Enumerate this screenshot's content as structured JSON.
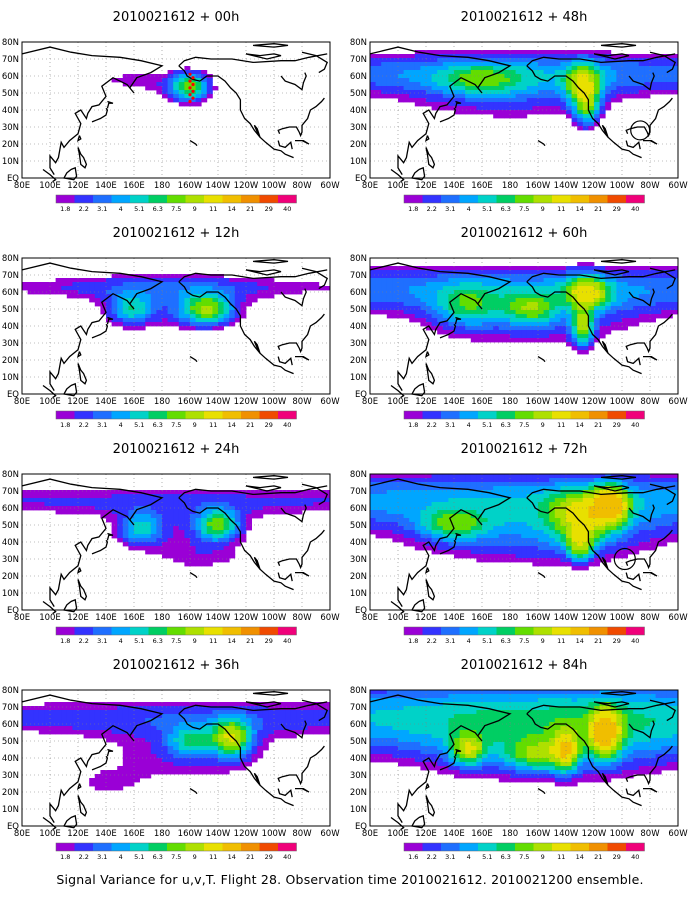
{
  "figure": {
    "caption": "Signal Variance for u,v,T. Flight 28. Observation time 2010021612. 2010021200 ensemble.",
    "palette": [
      "#9a00d6",
      "#3333ff",
      "#1f6fff",
      "#00a6ff",
      "#00d2c8",
      "#00ce63",
      "#63dd00",
      "#aee000",
      "#e8e000",
      "#f0be00",
      "#f09000",
      "#f04a00",
      "#f0007a"
    ],
    "continent_color": "#000000",
    "grid_color": "#808080"
  },
  "chart_data": [
    {
      "type": "heatmap",
      "title": "2010021612 + 00h",
      "x_tick_labels": [
        "80E",
        "100E",
        "120E",
        "140E",
        "160E",
        "180",
        "160W",
        "140W",
        "120W",
        "100W",
        "80W",
        "60W"
      ],
      "y_tick_labels": [
        "EQ",
        "10N",
        "20N",
        "30N",
        "40N",
        "50N",
        "60N",
        "70N",
        "80N"
      ],
      "colorbar_labels": [
        "1.8",
        "2.2",
        "3.1",
        "4",
        "5.1",
        "6.3",
        "7.5",
        "9",
        "11",
        "14",
        "21",
        "29",
        "40"
      ],
      "blobs": [
        [
          150,
          58,
          30,
          8,
          1.6
        ],
        [
          -160,
          53,
          9,
          6,
          6.5
        ],
        [
          -165,
          55,
          18,
          6,
          1.5
        ]
      ],
      "band": null,
      "observations": {
        "lon": -160,
        "lat_from": 45,
        "lat_to": 62
      },
      "circle": null
    },
    {
      "type": "heatmap",
      "title": "2010021612 + 12h",
      "x_tick_labels": [
        "80E",
        "100E",
        "120E",
        "140E",
        "160E",
        "180",
        "160W",
        "140W",
        "120W",
        "100W",
        "80W",
        "60W"
      ],
      "y_tick_labels": [
        "EQ",
        "10N",
        "20N",
        "30N",
        "40N",
        "50N",
        "60N",
        "70N",
        "80N"
      ],
      "colorbar_labels": [
        "1.8",
        "2.2",
        "3.1",
        "4",
        "5.1",
        "6.3",
        "7.5",
        "9",
        "11",
        "14",
        "21",
        "29",
        "40"
      ],
      "blobs": [
        [
          158,
          50,
          10,
          6,
          4.5
        ],
        [
          -148,
          50,
          12,
          6,
          7.5
        ],
        [
          -170,
          48,
          42,
          10,
          1.8
        ],
        [
          180,
          62,
          55,
          10,
          1.4
        ]
      ],
      "band": [
        63,
        5,
        1.5
      ],
      "observations": null,
      "circle": null
    },
    {
      "type": "heatmap",
      "title": "2010021612 + 24h",
      "x_tick_labels": [
        "80E",
        "100E",
        "120E",
        "140E",
        "160E",
        "180",
        "160W",
        "140W",
        "120W",
        "100W",
        "80W",
        "60W"
      ],
      "y_tick_labels": [
        "EQ",
        "10N",
        "20N",
        "30N",
        "40N",
        "50N",
        "60N",
        "70N",
        "80N"
      ],
      "colorbar_labels": [
        "1.8",
        "2.2",
        "3.1",
        "4",
        "5.1",
        "6.3",
        "7.5",
        "9",
        "11",
        "14",
        "21",
        "29",
        "40"
      ],
      "blobs": [
        [
          165,
          48,
          10,
          6,
          4.5
        ],
        [
          -140,
          50,
          10,
          6,
          7
        ],
        [
          -168,
          45,
          45,
          12,
          1.8
        ],
        [
          -150,
          30,
          25,
          6,
          1.3
        ]
      ],
      "band": [
        64,
        7,
        2.2
      ],
      "observations": null,
      "circle": null
    },
    {
      "type": "heatmap",
      "title": "2010021612 + 36h",
      "x_tick_labels": [
        "80E",
        "100E",
        "120E",
        "140E",
        "160E",
        "180",
        "160W",
        "140W",
        "120W",
        "100W",
        "80W",
        "60W"
      ],
      "y_tick_labels": [
        "EQ",
        "10N",
        "20N",
        "30N",
        "40N",
        "50N",
        "60N",
        "70N",
        "80N"
      ],
      "colorbar_labels": [
        "1.8",
        "2.2",
        "3.1",
        "4",
        "5.1",
        "6.3",
        "7.5",
        "9",
        "11",
        "14",
        "21",
        "29",
        "40"
      ],
      "blobs": [
        [
          -130,
          52,
          9,
          7,
          9
        ],
        [
          -158,
          50,
          12,
          6,
          4.5
        ],
        [
          -160,
          42,
          55,
          14,
          2.2
        ],
        [
          140,
          25,
          20,
          6,
          1.4
        ]
      ],
      "band": [
        64,
        8,
        2.5
      ],
      "observations": null,
      "circle": null
    },
    {
      "type": "heatmap",
      "title": "2010021612 + 48h",
      "x_tick_labels": [
        "80E",
        "100E",
        "120E",
        "140E",
        "160E",
        "180",
        "160W",
        "140W",
        "120W",
        "100W",
        "80W",
        "60W"
      ],
      "y_tick_labels": [
        "EQ",
        "10N",
        "20N",
        "30N",
        "40N",
        "50N",
        "60N",
        "70N",
        "80N"
      ],
      "colorbar_labels": [
        "1.8",
        "2.2",
        "3.1",
        "4",
        "5.1",
        "6.3",
        "7.5",
        "9",
        "11",
        "14",
        "21",
        "29",
        "40"
      ],
      "blobs": [
        [
          -128,
          55,
          8,
          8,
          8
        ],
        [
          -125,
          42,
          6,
          8,
          6
        ],
        [
          160,
          58,
          20,
          6,
          3.8
        ],
        [
          180,
          50,
          60,
          14,
          2.5
        ]
      ],
      "band": [
        62,
        9,
        3.2
      ],
      "observations": null,
      "circle": {
        "lon": -87,
        "lat": 28,
        "r": 4.5
      }
    },
    {
      "type": "heatmap",
      "title": "2010021612 + 60h",
      "x_tick_labels": [
        "80E",
        "100E",
        "120E",
        "140E",
        "160E",
        "180",
        "160W",
        "140W",
        "120W",
        "100W",
        "80W",
        "60W"
      ],
      "y_tick_labels": [
        "EQ",
        "10N",
        "20N",
        "30N",
        "40N",
        "50N",
        "60N",
        "70N",
        "80N"
      ],
      "colorbar_labels": [
        "1.8",
        "2.2",
        "3.1",
        "4",
        "5.1",
        "6.3",
        "7.5",
        "9",
        "11",
        "14",
        "21",
        "29",
        "40"
      ],
      "blobs": [
        [
          -125,
          60,
          10,
          6,
          9
        ],
        [
          -128,
          40,
          5,
          8,
          7.5
        ],
        [
          -165,
          50,
          12,
          6,
          5
        ],
        [
          150,
          52,
          15,
          8,
          4
        ],
        [
          -165,
          45,
          60,
          14,
          2.8
        ]
      ],
      "band": [
        62,
        10,
        3.5
      ],
      "observations": null,
      "circle": null
    },
    {
      "type": "heatmap",
      "title": "2010021612 + 72h",
      "x_tick_labels": [
        "80E",
        "100E",
        "120E",
        "140E",
        "160E",
        "180",
        "160W",
        "140W",
        "120W",
        "100W",
        "80W",
        "60W"
      ],
      "y_tick_labels": [
        "EQ",
        "10N",
        "20N",
        "30N",
        "40N",
        "50N",
        "60N",
        "70N",
        "80N"
      ],
      "colorbar_labels": [
        "1.8",
        "2.2",
        "3.1",
        "4",
        "5.1",
        "6.3",
        "7.5",
        "9",
        "11",
        "14",
        "21",
        "29",
        "40"
      ],
      "blobs": [
        [
          -108,
          62,
          8,
          7,
          12
        ],
        [
          -128,
          55,
          15,
          10,
          8
        ],
        [
          -130,
          38,
          6,
          6,
          7
        ],
        [
          140,
          50,
          15,
          6,
          5
        ],
        [
          -160,
          45,
          70,
          15,
          3.2
        ]
      ],
      "band": [
        65,
        12,
        4
      ],
      "observations": null,
      "circle": {
        "lon": -98,
        "lat": 30,
        "r": 5
      }
    },
    {
      "type": "heatmap",
      "title": "2010021612 + 84h",
      "x_tick_labels": [
        "80E",
        "100E",
        "120E",
        "140E",
        "160E",
        "180",
        "160W",
        "140W",
        "120W",
        "100W",
        "80W",
        "60W"
      ],
      "y_tick_labels": [
        "EQ",
        "10N",
        "20N",
        "30N",
        "40N",
        "50N",
        "60N",
        "70N",
        "80N"
      ],
      "colorbar_labels": [
        "1.6",
        "2.2",
        "3.1",
        "4",
        "5.1",
        "6.3",
        "7.5",
        "9",
        "11",
        "14",
        "21",
        "29",
        "40"
      ],
      "blobs": [
        [
          -112,
          55,
          7,
          9,
          13
        ],
        [
          -140,
          45,
          6,
          8,
          9
        ],
        [
          150,
          45,
          8,
          6,
          7.5
        ],
        [
          -160,
          42,
          15,
          6,
          5.5
        ],
        [
          -150,
          50,
          80,
          18,
          3.6
        ]
      ],
      "band": [
        65,
        14,
        4.5
      ],
      "observations": null,
      "circle": null
    }
  ]
}
